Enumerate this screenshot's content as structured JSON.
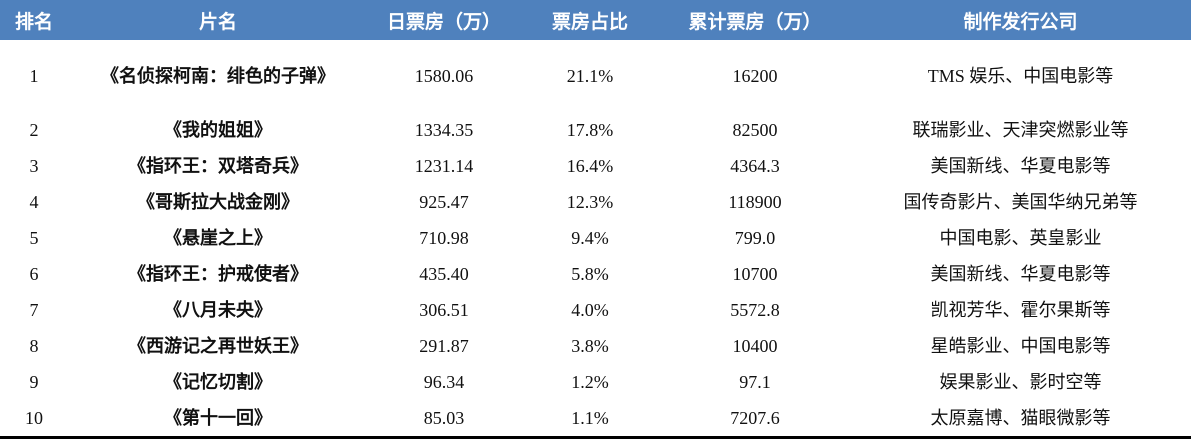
{
  "header_color": "#4f81bd",
  "columns": [
    "排名",
    "片名",
    "日票房（万）",
    "票房占比",
    "累计票房（万）",
    "制作发行公司"
  ],
  "rows": [
    {
      "rank": "1",
      "title": "《名侦探柯南：绯色的子弹》",
      "daily": "1580.06",
      "share": "21.1%",
      "total": "16200",
      "company": "TMS 娱乐、中国电影等"
    },
    {
      "rank": "2",
      "title": "《我的姐姐》",
      "daily": "1334.35",
      "share": "17.8%",
      "total": "82500",
      "company": "联瑞影业、天津突燃影业等"
    },
    {
      "rank": "3",
      "title": "《指环王：双塔奇兵》",
      "daily": "1231.14",
      "share": "16.4%",
      "total": "4364.3",
      "company": "美国新线、华夏电影等"
    },
    {
      "rank": "4",
      "title": "《哥斯拉大战金刚》",
      "daily": "925.47",
      "share": "12.3%",
      "total": "118900",
      "company": "国传奇影片、美国华纳兄弟等"
    },
    {
      "rank": "5",
      "title": "《悬崖之上》",
      "daily": "710.98",
      "share": "9.4%",
      "total": "799.0",
      "company": "中国电影、英皇影业"
    },
    {
      "rank": "6",
      "title": "《指环王：护戒使者》",
      "daily": "435.40",
      "share": "5.8%",
      "total": "10700",
      "company": "美国新线、华夏电影等"
    },
    {
      "rank": "7",
      "title": "《八月未央》",
      "daily": "306.51",
      "share": "4.0%",
      "total": "5572.8",
      "company": "凯视芳华、霍尔果斯等"
    },
    {
      "rank": "8",
      "title": "《西游记之再世妖王》",
      "daily": "291.87",
      "share": "3.8%",
      "total": "10400",
      "company": "星皓影业、中国电影等"
    },
    {
      "rank": "9",
      "title": "《记忆切割》",
      "daily": "96.34",
      "share": "1.2%",
      "total": "97.1",
      "company": "娱果影业、影时空等"
    },
    {
      "rank": "10",
      "title": "《第十一回》",
      "daily": "85.03",
      "share": "1.1%",
      "total": "7207.6",
      "company": "太原嘉博、猫眼微影等"
    }
  ]
}
